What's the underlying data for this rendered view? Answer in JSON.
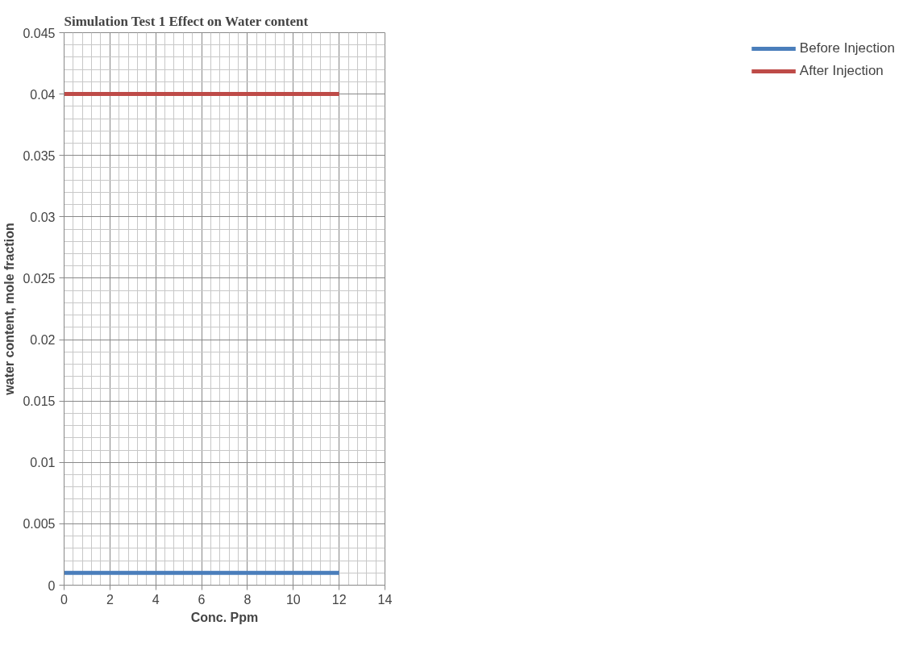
{
  "chart_data": {
    "type": "line",
    "title": "Simulation Test 1 Effect on Water content",
    "xlabel": "Conc. Ppm",
    "ylabel": "water content, mole fraction",
    "x": [
      0,
      12
    ],
    "series": [
      {
        "name": "Before Injection",
        "color": "#4a7ebb",
        "values": [
          0.001,
          0.001
        ]
      },
      {
        "name": "After Injection",
        "color": "#be4b48",
        "values": [
          0.04,
          0.04
        ]
      }
    ],
    "xlim": [
      0,
      14
    ],
    "xticks": [
      0,
      2,
      4,
      6,
      8,
      10,
      12,
      14
    ],
    "ylim": [
      0,
      0.045
    ],
    "yticks": [
      0,
      0.005,
      0.01,
      0.015,
      0.02,
      0.025,
      0.03,
      0.035,
      0.04,
      0.045
    ],
    "grid": true,
    "legend": "right",
    "marker": "none",
    "line_style": "solid"
  }
}
